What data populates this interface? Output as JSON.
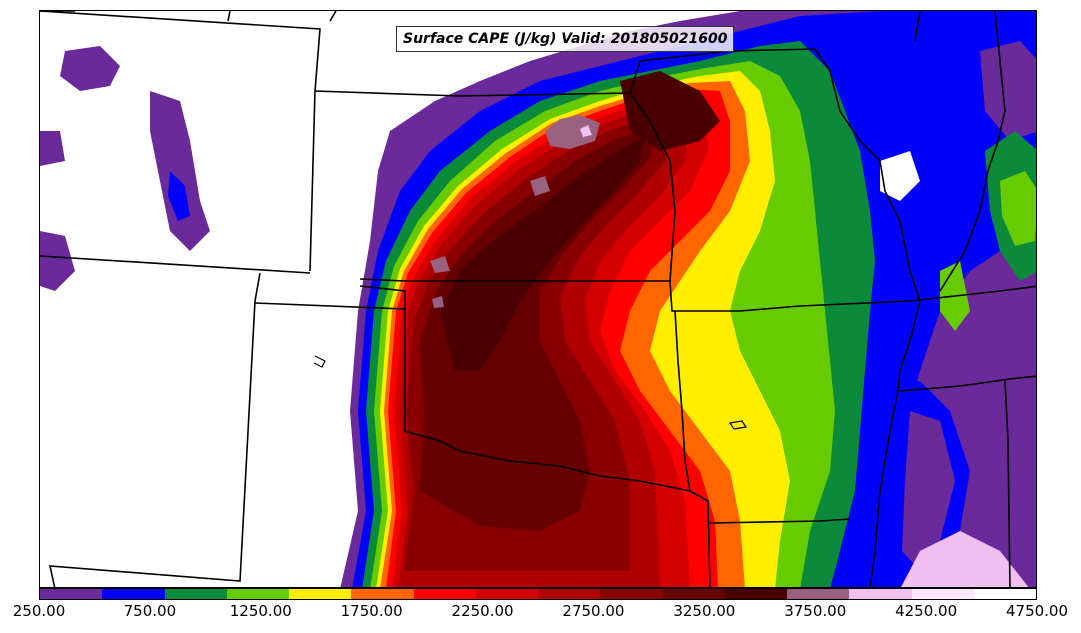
{
  "title": "Surface CAPE (J/kg) Valid: 201805021600",
  "colorbar": {
    "colors": [
      "#6a2a9a",
      "#0000ff",
      "#0a8a3a",
      "#66cc00",
      "#ffee00",
      "#ff6600",
      "#ff0000",
      "#d40000",
      "#b00000",
      "#8a0000",
      "#660000",
      "#4a0000",
      "#9a6080",
      "#f0c0f0",
      "#ffe6ff",
      "#ffffff"
    ],
    "labels": [
      "250.00",
      "750.00",
      "1250.00",
      "1750.00",
      "2250.00",
      "2750.00",
      "3250.00",
      "3750.00",
      "4250.00",
      "4750.00"
    ]
  },
  "chart_data": {
    "type": "heatmap",
    "variable": "Surface CAPE",
    "units": "J/kg",
    "valid_time": "201805021600",
    "levels": [
      250,
      500,
      750,
      1000,
      1250,
      1500,
      1750,
      2000,
      2250,
      2500,
      2750,
      3000,
      3250,
      3500,
      3750,
      4000,
      4250,
      4500,
      4750
    ],
    "colorbar_ticks": [
      250,
      750,
      1250,
      1750,
      2250,
      2750,
      3250,
      3750,
      4250,
      4750
    ]
  }
}
